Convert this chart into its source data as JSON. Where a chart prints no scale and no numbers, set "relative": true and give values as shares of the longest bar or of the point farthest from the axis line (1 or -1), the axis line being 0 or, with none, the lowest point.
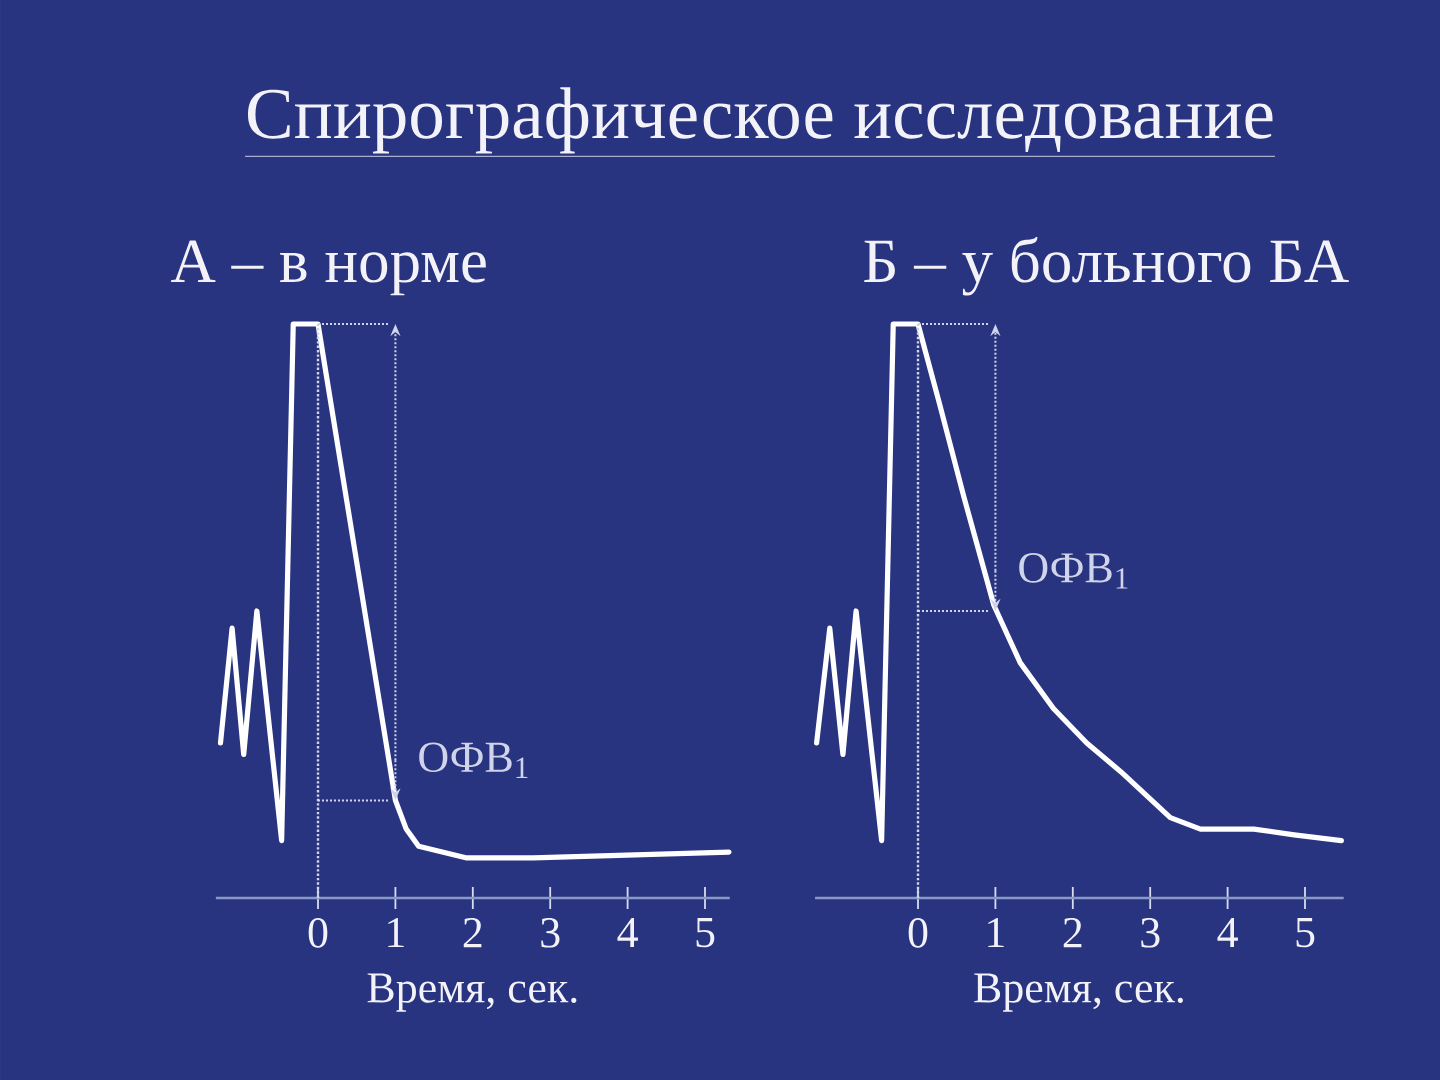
{
  "chart_data": [
    {
      "type": "line",
      "title": "Спирографическое исследование",
      "subtitle": "А – в норме",
      "xlabel": "Время, сек.",
      "relative": true,
      "color": "#ffffff",
      "x": [
        -1.26,
        -1.11,
        -0.96,
        -0.79,
        -0.47,
        -0.32,
        0,
        1,
        1.14,
        1.3,
        1.91,
        2.78,
        5.31
      ],
      "values": [
        0.27,
        0.47,
        0.25,
        0.5,
        0.1,
        1,
        1,
        0.17,
        0.12,
        0.09,
        0.07,
        0.07,
        0.08
      ],
      "xlim": [
        -1.32,
        5.32
      ],
      "xticks": [
        0,
        1,
        2,
        3,
        4,
        5
      ],
      "ref_lines": [
        {
          "axis": "x",
          "value": 0,
          "line_style": "dotted",
          "color": "#d0d4ea"
        }
      ],
      "annotations": [
        {
          "text": "ОФВ$_{1}$",
          "x": 1,
          "y": 0.17
        }
      ]
    },
    {
      "type": "line",
      "subtitle": "Б – у больного БА",
      "xlabel": "Время, сек.",
      "relative": true,
      "color": "#ffffff",
      "x": [
        -1.31,
        -1.14,
        -0.97,
        -0.8,
        -0.47,
        -0.32,
        0,
        0.28,
        0.59,
        0.98,
        1.32,
        1.75,
        2.18,
        2.62,
        3.26,
        3.65,
        4.34,
        4.86,
        5.47
      ],
      "values": [
        0.27,
        0.47,
        0.25,
        0.5,
        0.1,
        1,
        1,
        0.86,
        0.7,
        0.51,
        0.41,
        0.33,
        0.27,
        0.22,
        0.14,
        0.12,
        0.12,
        0.11,
        0.1
      ],
      "xlim": [
        -1.33,
        5.5
      ],
      "xticks": [
        0,
        1,
        2,
        3,
        4,
        5
      ],
      "ref_lines": [
        {
          "axis": "x",
          "value": 0,
          "line_style": "dotted",
          "color": "#d0d4ea"
        }
      ],
      "annotations": [
        {
          "text": "ОФВ$_{1}$",
          "x": 1,
          "y": 0.5
        }
      ]
    }
  ]
}
